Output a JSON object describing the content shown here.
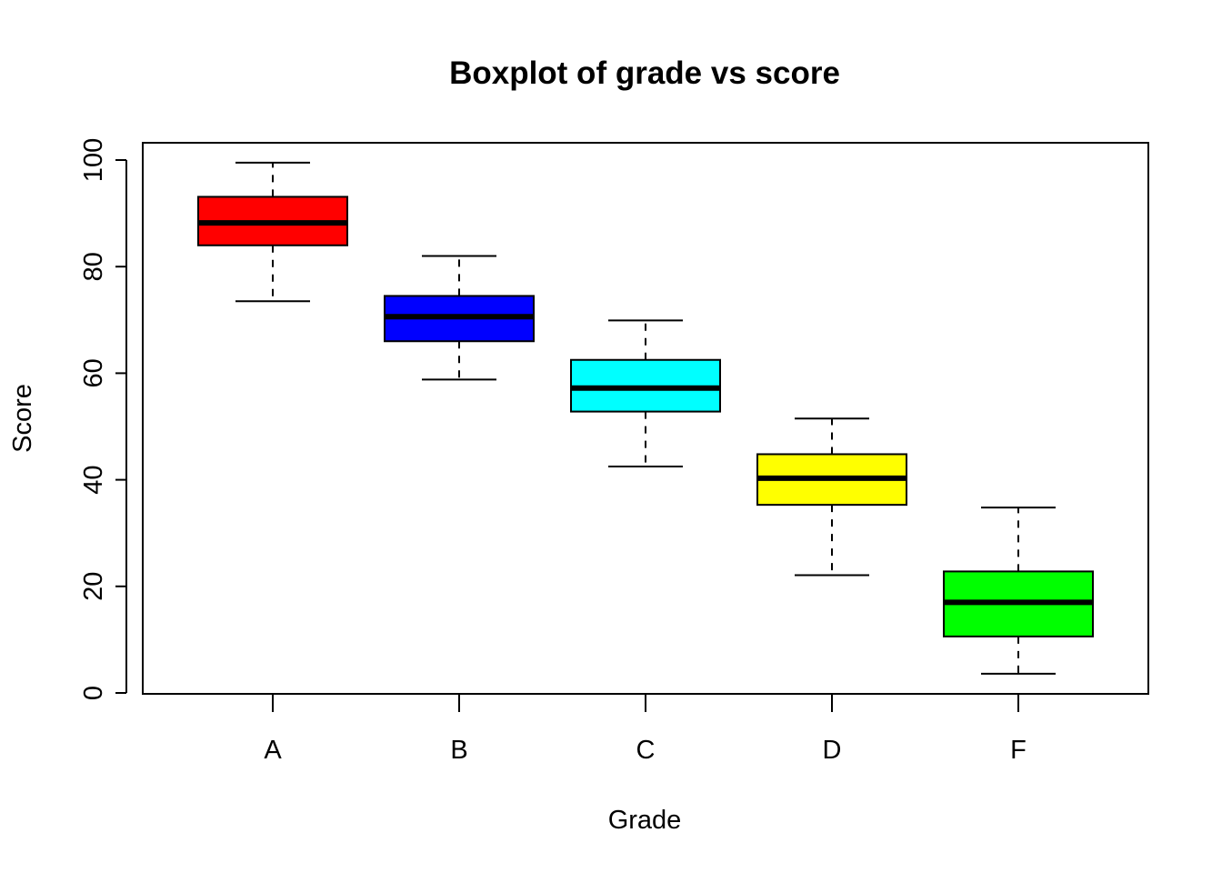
{
  "chart_data": {
    "type": "boxplot",
    "title": "Boxplot of grade vs score",
    "xlabel": "Grade",
    "ylabel": "Score",
    "ylim": [
      0,
      100
    ],
    "yticks": [
      0,
      20,
      40,
      60,
      80,
      100
    ],
    "grid": false,
    "legend": "none",
    "categories": [
      "A",
      "B",
      "C",
      "D",
      "F"
    ],
    "boxes": [
      {
        "category": "A",
        "min": 73.5,
        "q1": 84.0,
        "median": 88.2,
        "q3": 93.1,
        "max": 99.5,
        "color": "#ff0000"
      },
      {
        "category": "B",
        "min": 58.8,
        "q1": 66.0,
        "median": 70.6,
        "q3": 74.5,
        "max": 82.0,
        "color": "#0000ff"
      },
      {
        "category": "C",
        "min": 42.5,
        "q1": 52.8,
        "median": 57.2,
        "q3": 62.5,
        "max": 69.9,
        "color": "#00ffff"
      },
      {
        "category": "D",
        "min": 22.1,
        "q1": 35.3,
        "median": 40.3,
        "q3": 44.8,
        "max": 51.5,
        "color": "#ffff00"
      },
      {
        "category": "F",
        "min": 3.6,
        "q1": 10.6,
        "median": 17.0,
        "q3": 22.8,
        "max": 34.8,
        "color": "#00ff00"
      }
    ]
  }
}
